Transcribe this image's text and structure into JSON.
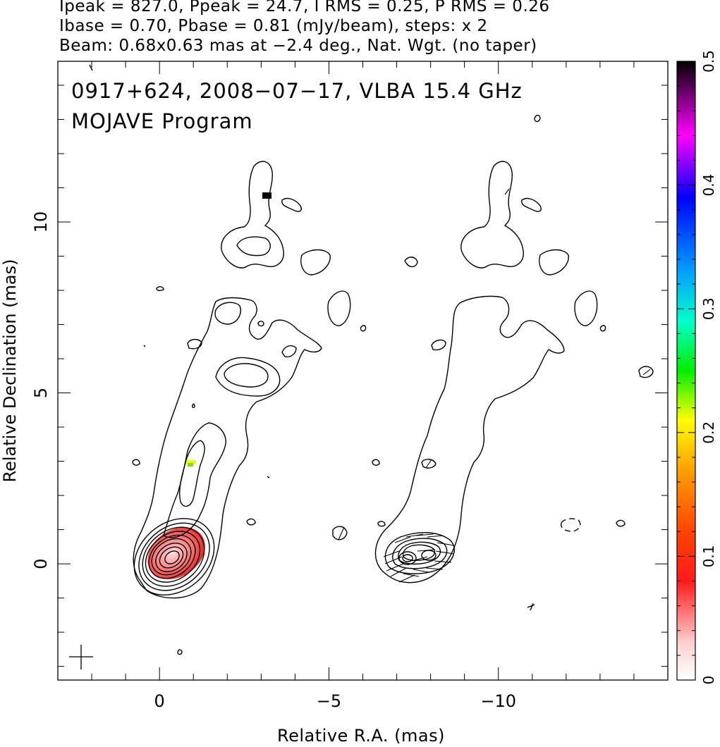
{
  "header": {
    "line1": "Ipeak = 827.0, Ppeak = 24.7, I RMS = 0.25, P RMS = 0.26",
    "line2": "Ibase = 0.70, Pbase = 0.81 (mJy/beam), steps: x 2",
    "line3": "Beam: 0.68x0.63 mas at −2.4 deg., Nat. Wgt. (no taper)"
  },
  "plot": {
    "title_line1": "0917+624, 2008−07−17, VLBA 15.4 GHz",
    "title_line2": "MOJAVE Program"
  },
  "chart_data": {
    "type": "contour",
    "xlabel": "Relative R.A. (mas)",
    "ylabel": "Relative Declination (mas)",
    "xlim": [
      3.0,
      -15.0
    ],
    "ylim": [
      -3.4,
      14.7
    ],
    "x_ticks": [
      0,
      -5,
      -10
    ],
    "x_tick_labels": [
      "0",
      "−5",
      "−10"
    ],
    "y_ticks": [
      0,
      5,
      10
    ],
    "y_tick_labels": [
      "0",
      "5",
      "10"
    ],
    "colorbar": {
      "range": [
        0,
        0.5
      ],
      "ticks": [
        0,
        0.1,
        0.2,
        0.3,
        0.4,
        0.5
      ],
      "tick_labels": [
        "0",
        "0.1",
        "0.2",
        "0.3",
        "0.4",
        "0.5"
      ],
      "colors": [
        "#ffffff",
        "#ff0000",
        "#ff8c00",
        "#ffff00",
        "#00ff00",
        "#00ffff",
        "#0000ff",
        "#ff00ff",
        "#000000"
      ]
    },
    "panels": [
      "total intensity contours with fractional polarization color",
      "polarized intensity contours with EVPA ticks"
    ],
    "contour_base_mJy_per_beam": {
      "I": 0.7,
      "P": 0.81
    },
    "contour_step_factor": 2
  }
}
